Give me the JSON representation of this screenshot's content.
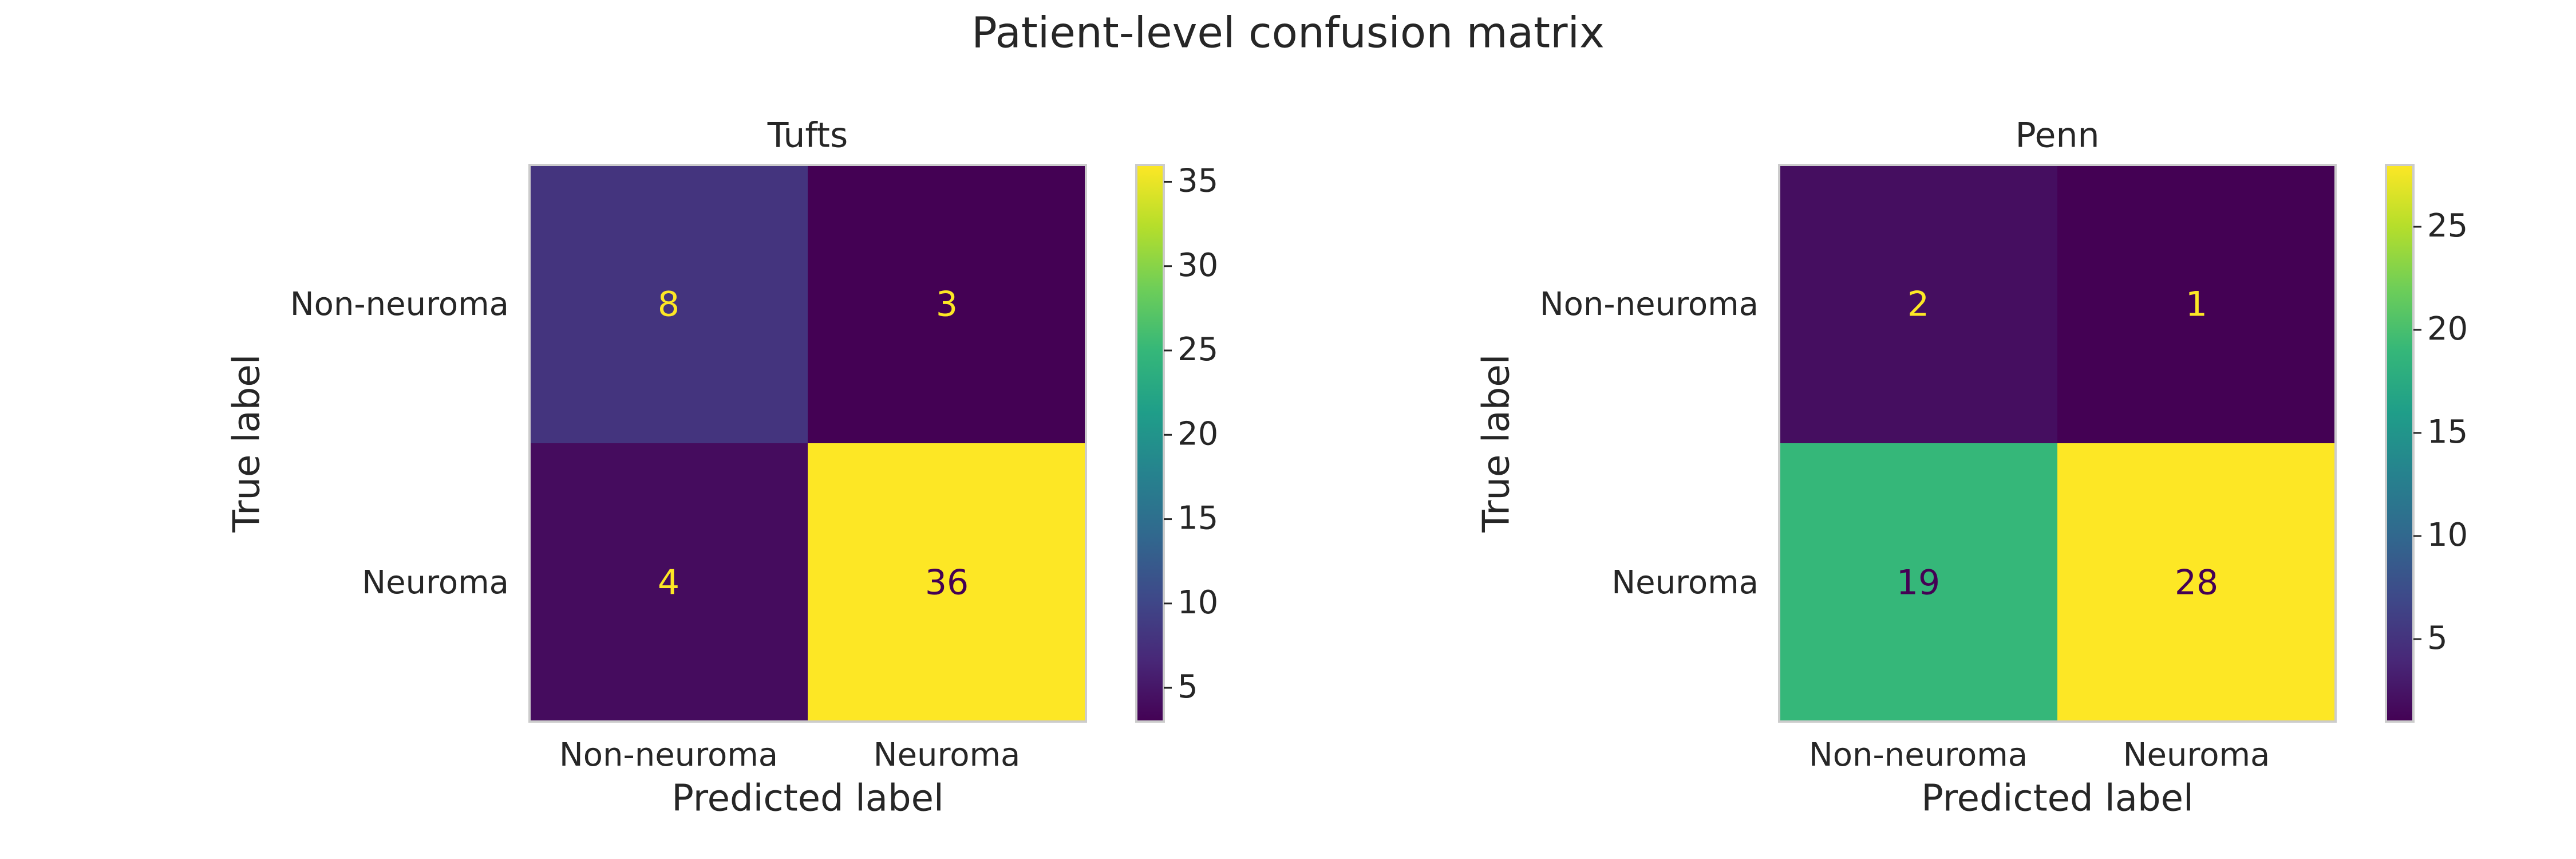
{
  "figure": {
    "title": "Patient-level confusion matrix"
  },
  "chart_data": [
    {
      "type": "heatmap",
      "title": "Tufts",
      "xlabel": "Predicted label",
      "ylabel": "True label",
      "x_categories": [
        "Non-neuroma",
        "Neuroma"
      ],
      "y_categories": [
        "Non-neuroma",
        "Neuroma"
      ],
      "matrix": [
        [
          8,
          3
        ],
        [
          4,
          36
        ]
      ],
      "colormap": "viridis",
      "colorbar": {
        "range": [
          3,
          36
        ],
        "ticks": [
          5,
          10,
          15,
          20,
          25,
          30,
          35
        ]
      }
    },
    {
      "type": "heatmap",
      "title": "Penn",
      "xlabel": "Predicted label",
      "ylabel": "True label",
      "x_categories": [
        "Non-neuroma",
        "Neuroma"
      ],
      "y_categories": [
        "Non-neuroma",
        "Neuroma"
      ],
      "matrix": [
        [
          2,
          1
        ],
        [
          19,
          28
        ]
      ],
      "colormap": "viridis",
      "colorbar": {
        "range": [
          1,
          28
        ],
        "ticks": [
          5,
          10,
          15,
          20,
          25
        ]
      }
    }
  ],
  "style": {
    "text_color": "#262626",
    "frame_color": "#cccccc",
    "cell_text_light": "#fde725",
    "cell_text_dark": "#440154"
  }
}
